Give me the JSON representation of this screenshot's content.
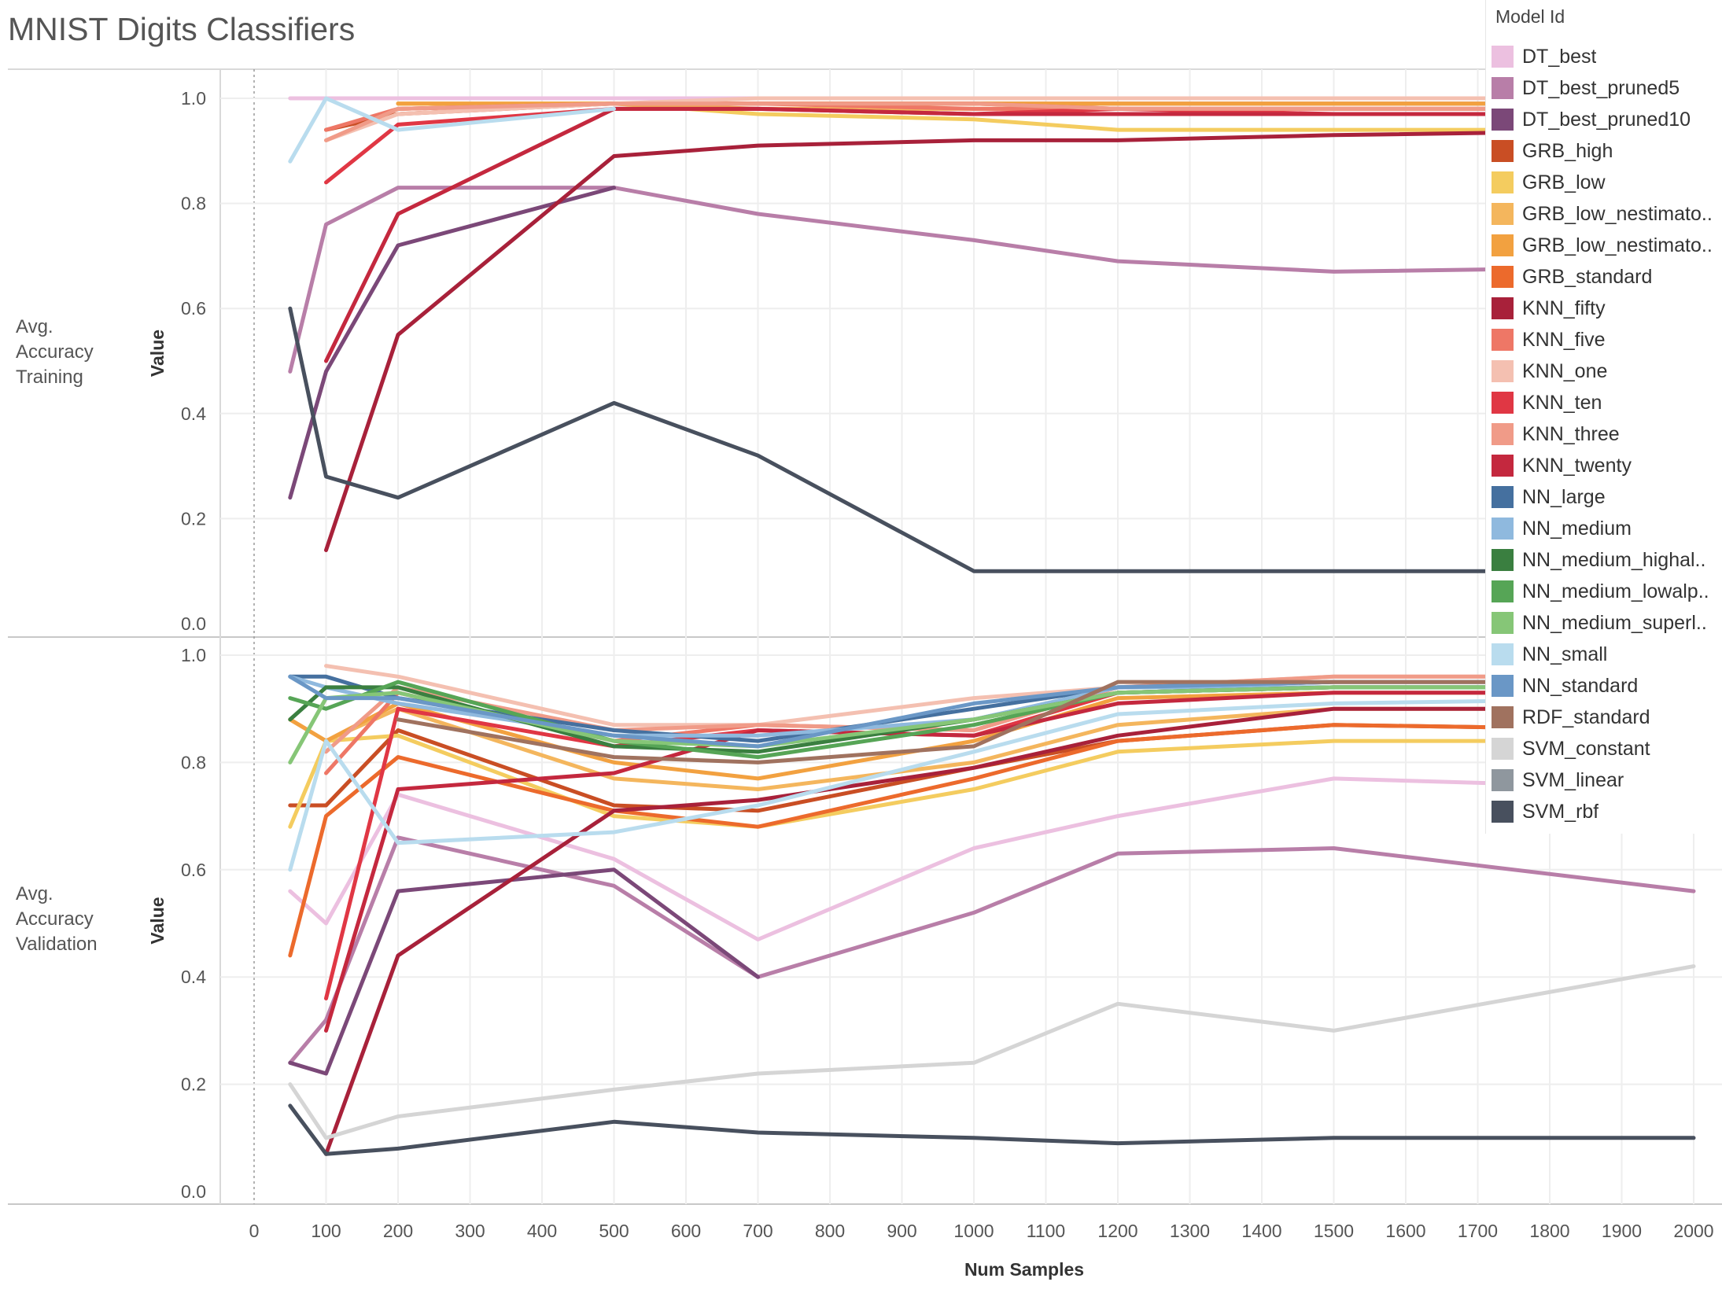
{
  "title": "MNIST Digits Classifiers",
  "legend": {
    "title": "Model Id",
    "items": [
      {
        "label": "DT_best",
        "color": "#ecc0e0"
      },
      {
        "label": "DT_best_pruned5",
        "color": "#b87ea8"
      },
      {
        "label": "DT_best_pruned10",
        "color": "#7b4878"
      },
      {
        "label": "GRB_high",
        "color": "#c94e24"
      },
      {
        "label": "GRB_low",
        "color": "#f4cc5f"
      },
      {
        "label": "GRB_low_nestimato..",
        "color": "#f4b65d"
      },
      {
        "label": "GRB_low_nestimato..",
        "color": "#f2a140"
      },
      {
        "label": "GRB_standard",
        "color": "#ec6a2c"
      },
      {
        "label": "KNN_fifty",
        "color": "#a8213a"
      },
      {
        "label": "KNN_five",
        "color": "#ee7766"
      },
      {
        "label": "KNN_one",
        "color": "#f4c0b1"
      },
      {
        "label": "KNN_ten",
        "color": "#e03744"
      },
      {
        "label": "KNN_three",
        "color": "#f09b88"
      },
      {
        "label": "KNN_twenty",
        "color": "#c4283e"
      },
      {
        "label": "NN_large",
        "color": "#45709f"
      },
      {
        "label": "NN_medium",
        "color": "#8fb9de"
      },
      {
        "label": "NN_medium_highal..",
        "color": "#3a7f40"
      },
      {
        "label": "NN_medium_lowalp..",
        "color": "#56a556"
      },
      {
        "label": "NN_medium_superl..",
        "color": "#86c677"
      },
      {
        "label": "NN_small",
        "color": "#b9dcee"
      },
      {
        "label": "NN_standard",
        "color": "#6a97c6"
      },
      {
        "label": "RDF_standard",
        "color": "#a0725f"
      },
      {
        "label": "SVM_constant",
        "color": "#d5d5d5"
      },
      {
        "label": "SVM_linear",
        "color": "#8f979e"
      },
      {
        "label": "SVM_rbf",
        "color": "#48505e"
      }
    ]
  },
  "rows": {
    "training": "Avg.\nAccuracy\nTraining",
    "validation": "Avg.\nAccuracy\nValidation"
  },
  "chart_data": {
    "type": "line",
    "xlabel": "Num Samples",
    "ylabel": "Value",
    "xlim": [
      -100,
      2030
    ],
    "ylim": [
      0.0,
      1.0
    ],
    "x_ticks": [
      0,
      100,
      200,
      300,
      400,
      500,
      600,
      700,
      800,
      900,
      1000,
      1100,
      1200,
      1300,
      1400,
      1500,
      1600,
      1700,
      1800,
      1900,
      2000
    ],
    "y_ticks": [
      0.0,
      0.2,
      0.4,
      0.6,
      0.8,
      1.0
    ],
    "x": [
      50,
      100,
      200,
      500,
      700,
      1000,
      1200,
      1500,
      2000
    ],
    "panels": [
      {
        "name": "Avg. Accuracy Training",
        "series": [
          {
            "name": "DT_best",
            "values": [
              1.0,
              1.0,
              1.0,
              1.0,
              1.0,
              1.0,
              1.0,
              1.0,
              1.0
            ]
          },
          {
            "name": "DT_best_pruned5",
            "values": [
              0.48,
              0.76,
              0.83,
              0.83,
              0.78,
              0.73,
              0.69,
              0.67,
              0.68
            ]
          },
          {
            "name": "DT_best_pruned10",
            "values": [
              0.24,
              0.48,
              0.72,
              0.83,
              null,
              null,
              null,
              null,
              null
            ]
          },
          {
            "name": "GRB_high",
            "values": [
              null,
              0.94,
              0.97,
              0.99,
              0.99,
              0.99,
              0.99,
              0.99,
              0.99
            ]
          },
          {
            "name": "GRB_low",
            "values": [
              null,
              null,
              0.99,
              0.99,
              0.97,
              0.96,
              0.94,
              0.94,
              0.94
            ]
          },
          {
            "name": "GRB_low_nestimato..",
            "values": [
              null,
              null,
              0.99,
              0.99,
              0.98,
              0.98,
              0.98,
              0.98,
              0.98
            ]
          },
          {
            "name": "GRB_low_nestimato..",
            "values": [
              null,
              null,
              0.99,
              0.99,
              0.99,
              0.99,
              0.99,
              0.99,
              0.99
            ]
          },
          {
            "name": "GRB_standard",
            "values": [
              null,
              null,
              0.98,
              0.99,
              0.99,
              0.99,
              0.98,
              0.98,
              0.98
            ]
          },
          {
            "name": "KNN_fifty",
            "values": [
              null,
              0.14,
              0.55,
              0.89,
              0.91,
              0.92,
              0.92,
              0.93,
              0.94
            ]
          },
          {
            "name": "KNN_five",
            "values": [
              null,
              0.94,
              0.98,
              0.99,
              0.99,
              0.98,
              0.98,
              0.98,
              0.98
            ]
          },
          {
            "name": "KNN_one",
            "values": [
              null,
              0.92,
              0.97,
              0.99,
              1.0,
              1.0,
              1.0,
              1.0,
              1.0
            ]
          },
          {
            "name": "KNN_ten",
            "values": [
              null,
              0.84,
              0.95,
              0.98,
              0.98,
              0.97,
              0.98,
              0.97,
              0.97
            ]
          },
          {
            "name": "KNN_three",
            "values": [
              null,
              0.92,
              0.98,
              0.99,
              0.99,
              0.99,
              0.98,
              0.98,
              0.98
            ]
          },
          {
            "name": "KNN_twenty",
            "values": [
              null,
              0.5,
              0.78,
              0.98,
              0.98,
              0.97,
              0.97,
              0.97,
              0.97
            ]
          },
          {
            "name": "NN_small",
            "values": [
              0.88,
              1.0,
              0.94,
              0.98,
              null,
              null,
              null,
              null,
              null
            ]
          },
          {
            "name": "SVM_rbf",
            "values": [
              0.6,
              0.28,
              0.24,
              0.42,
              0.32,
              0.1,
              0.1,
              0.1,
              0.1
            ]
          }
        ]
      },
      {
        "name": "Avg. Accuracy Validation",
        "series": [
          {
            "name": "DT_best",
            "values": [
              0.56,
              0.5,
              0.74,
              0.62,
              0.47,
              0.64,
              0.7,
              0.77,
              0.75
            ]
          },
          {
            "name": "DT_best_pruned5",
            "values": [
              0.24,
              0.32,
              0.66,
              0.57,
              0.4,
              0.52,
              0.63,
              0.64,
              0.56
            ]
          },
          {
            "name": "DT_best_pruned10",
            "values": [
              0.24,
              0.22,
              0.56,
              0.6,
              0.4,
              null,
              null,
              null,
              null
            ]
          },
          {
            "name": "GRB_high",
            "values": [
              0.72,
              0.72,
              0.86,
              0.72,
              0.71,
              0.79,
              0.84,
              0.87,
              0.86
            ]
          },
          {
            "name": "GRB_low",
            "values": [
              0.68,
              0.84,
              0.85,
              0.7,
              0.68,
              0.75,
              0.82,
              0.84,
              0.84
            ]
          },
          {
            "name": "GRB_low_nestimato..",
            "values": [
              0.88,
              0.84,
              0.9,
              0.77,
              0.75,
              0.8,
              0.87,
              0.9,
              0.9
            ]
          },
          {
            "name": "GRB_low_nestimato..",
            "values": [
              0.88,
              0.84,
              0.91,
              0.8,
              0.77,
              0.84,
              0.92,
              0.93,
              0.93
            ]
          },
          {
            "name": "GRB_standard",
            "values": [
              0.44,
              0.7,
              0.81,
              0.71,
              0.68,
              0.77,
              0.84,
              0.87,
              0.86
            ]
          },
          {
            "name": "KNN_fifty",
            "values": [
              null,
              0.07,
              0.44,
              0.71,
              0.73,
              0.79,
              0.85,
              0.9,
              0.9
            ]
          },
          {
            "name": "KNN_five",
            "values": [
              null,
              0.78,
              0.93,
              0.84,
              0.87,
              0.86,
              0.94,
              0.95,
              0.95
            ]
          },
          {
            "name": "KNN_one",
            "values": [
              null,
              0.98,
              0.96,
              0.87,
              0.87,
              0.92,
              0.94,
              0.96,
              0.96
            ]
          },
          {
            "name": "KNN_ten",
            "values": [
              null,
              0.36,
              0.9,
              0.83,
              0.86,
              0.85,
              0.93,
              0.94,
              0.94
            ]
          },
          {
            "name": "KNN_three",
            "values": [
              null,
              0.82,
              0.94,
              0.86,
              0.87,
              0.86,
              0.94,
              0.96,
              0.96
            ]
          },
          {
            "name": "KNN_twenty",
            "values": [
              null,
              0.3,
              0.75,
              0.78,
              0.86,
              0.85,
              0.91,
              0.93,
              0.93
            ]
          },
          {
            "name": "NN_large",
            "values": [
              0.96,
              0.96,
              0.92,
              0.86,
              0.84,
              0.9,
              0.94,
              0.95,
              0.95
            ]
          },
          {
            "name": "NN_medium",
            "values": [
              0.96,
              0.94,
              0.91,
              0.85,
              0.85,
              0.88,
              0.94,
              0.94,
              0.94
            ]
          },
          {
            "name": "NN_medium_highal..",
            "values": [
              0.88,
              0.94,
              0.94,
              0.83,
              0.82,
              0.88,
              0.93,
              0.94,
              0.94
            ]
          },
          {
            "name": "NN_medium_lowalp..",
            "values": [
              0.92,
              0.9,
              0.95,
              0.84,
              0.81,
              0.87,
              0.93,
              0.94,
              0.94
            ]
          },
          {
            "name": "NN_medium_superl..",
            "values": [
              0.8,
              0.92,
              0.93,
              0.84,
              0.83,
              0.88,
              0.93,
              0.94,
              0.94
            ]
          },
          {
            "name": "NN_small",
            "values": [
              0.6,
              0.84,
              0.65,
              0.67,
              0.72,
              0.82,
              0.89,
              0.91,
              0.92
            ]
          },
          {
            "name": "NN_standard",
            "values": [
              0.96,
              0.92,
              0.92,
              0.85,
              0.83,
              0.91,
              0.94,
              0.95,
              0.95
            ]
          },
          {
            "name": "RDF_standard",
            "values": [
              null,
              null,
              0.88,
              0.81,
              0.8,
              0.83,
              0.95,
              0.95,
              0.95
            ]
          },
          {
            "name": "SVM_constant",
            "values": [
              0.2,
              0.1,
              0.14,
              0.19,
              0.22,
              0.24,
              0.35,
              0.3,
              0.42
            ]
          },
          {
            "name": "SVM_rbf",
            "values": [
              0.16,
              0.07,
              0.08,
              0.13,
              0.11,
              0.1,
              0.09,
              0.1,
              0.1
            ]
          }
        ]
      }
    ]
  }
}
